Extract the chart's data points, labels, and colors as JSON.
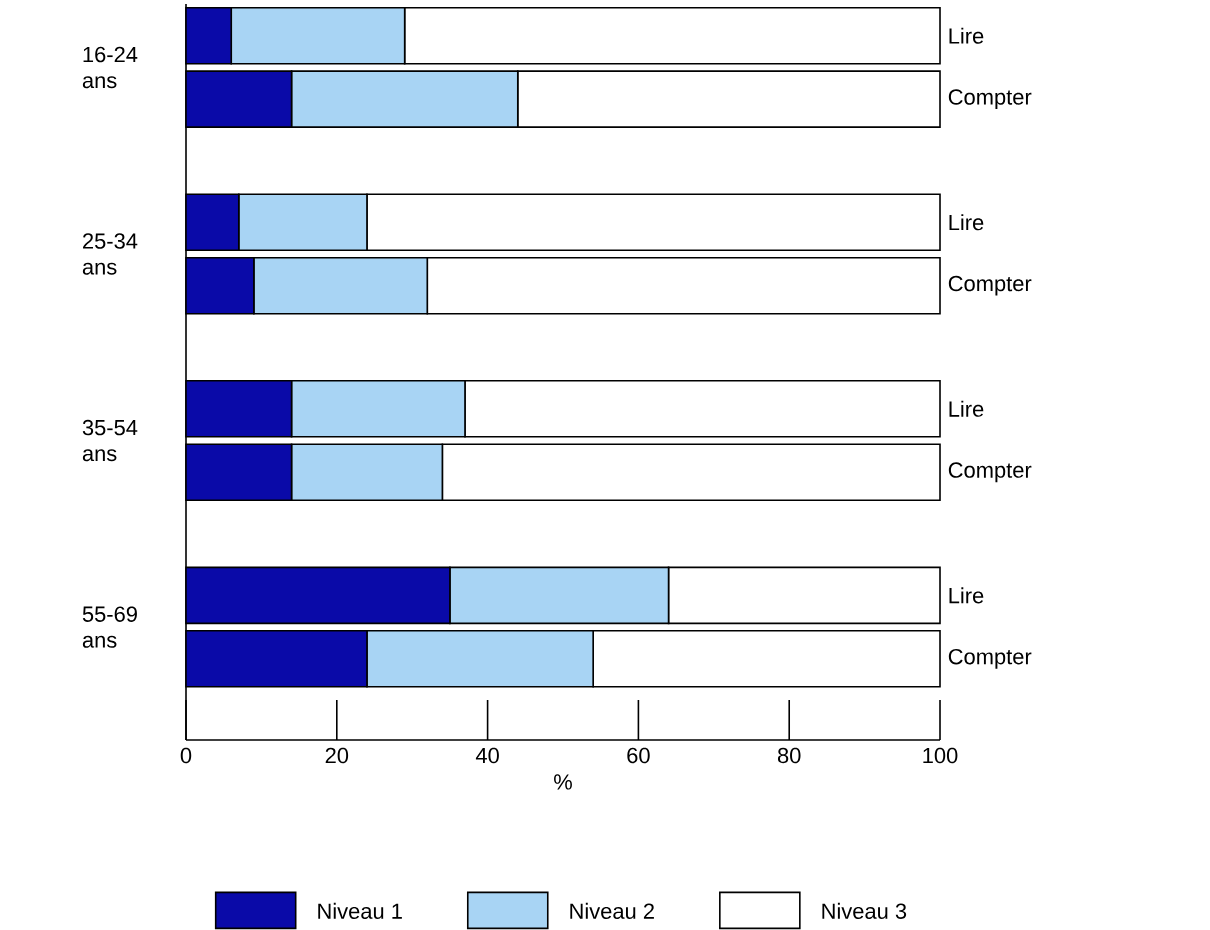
{
  "chart_data": {
    "type": "bar",
    "orientation": "horizontal",
    "stacked": true,
    "xlabel": "%",
    "categories": [
      "Lire",
      "Compter",
      "Lire",
      "Compter",
      "Lire",
      "Compter",
      "Lire",
      "Compter"
    ],
    "annotations": [
      "16-24 ans",
      "25-34 ans",
      "35-54 ans",
      "55-69 ans"
    ],
    "series": [
      {
        "name": "Niveau 1",
        "color": "#0a0aa8",
        "values": [
          6,
          14,
          7,
          9,
          14,
          14,
          35,
          24
        ]
      },
      {
        "name": "Niveau 2",
        "color": "#a8d4f4",
        "values": [
          23,
          30,
          17,
          23,
          23,
          20,
          29,
          30
        ]
      },
      {
        "name": "Niveau 3",
        "color": "#ffffff",
        "values": [
          71,
          56,
          76,
          68,
          63,
          66,
          36,
          46
        ]
      }
    ],
    "xlim": [
      0,
      100
    ],
    "xticks": [
      0,
      20,
      40,
      60,
      80,
      100
    ],
    "grid": false,
    "legend": "bottom"
  }
}
